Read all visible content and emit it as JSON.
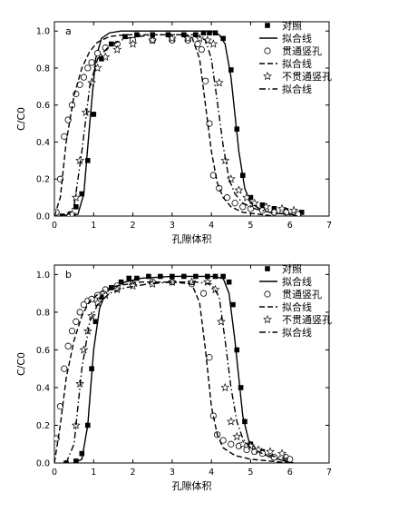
{
  "chart_data": [
    {
      "panel": "a",
      "type": "scatter",
      "xlabel": "孔隙体积",
      "ylabel": "C/C0",
      "xlim": [
        0,
        7
      ],
      "ylim": [
        0,
        1.05
      ],
      "xticks": [
        0,
        1,
        2,
        3,
        4,
        5,
        6,
        7
      ],
      "yticks": [
        0.0,
        0.2,
        0.4,
        0.6,
        0.8,
        1.0
      ],
      "legend": [
        "对照",
        "拟合线",
        "贯通竖孔",
        "拟合线",
        "不贯通竖孔",
        "拟合线"
      ],
      "series": [
        {
          "name": "对照",
          "kind": "points",
          "marker": "square",
          "x": [
            0.2,
            0.4,
            0.55,
            0.7,
            0.85,
            1.0,
            1.2,
            1.45,
            1.8,
            2.1,
            2.5,
            2.9,
            3.3,
            3.6,
            3.8,
            3.95,
            4.1,
            4.3,
            4.5,
            4.65,
            4.8,
            5.0,
            5.3,
            5.6,
            5.9,
            6.3
          ],
          "y": [
            0.0,
            0.01,
            0.05,
            0.12,
            0.3,
            0.55,
            0.85,
            0.93,
            0.97,
            0.98,
            0.98,
            0.98,
            0.98,
            0.98,
            0.99,
            0.99,
            0.99,
            0.96,
            0.79,
            0.47,
            0.22,
            0.1,
            0.06,
            0.04,
            0.03,
            0.02
          ]
        },
        {
          "name": "拟合线",
          "kind": "line",
          "dash": "solid",
          "x": [
            0.4,
            0.6,
            0.75,
            0.9,
            1.05,
            1.2,
            1.4,
            1.7,
            2.0,
            3.0,
            4.0,
            4.2,
            4.35,
            4.5,
            4.6,
            4.7,
            4.85,
            5.0,
            5.3,
            5.6,
            6.0,
            6.3
          ],
          "y": [
            0.0,
            0.01,
            0.12,
            0.5,
            0.85,
            0.96,
            0.99,
            1.0,
            1.0,
            1.0,
            1.0,
            0.98,
            0.93,
            0.75,
            0.55,
            0.35,
            0.15,
            0.07,
            0.03,
            0.015,
            0.01,
            0.0
          ]
        },
        {
          "name": "贯通竖孔",
          "kind": "points",
          "marker": "circle",
          "x": [
            0.05,
            0.15,
            0.25,
            0.35,
            0.45,
            0.55,
            0.65,
            0.75,
            0.85,
            0.95,
            1.1,
            1.3,
            1.6,
            2.0,
            2.5,
            3.0,
            3.4,
            3.65,
            3.75,
            3.85,
            3.95,
            4.05,
            4.2,
            4.4,
            4.6,
            4.8,
            5.0,
            5.3,
            5.6,
            5.9,
            6.2
          ],
          "y": [
            0.02,
            0.2,
            0.43,
            0.52,
            0.6,
            0.66,
            0.71,
            0.75,
            0.8,
            0.83,
            0.88,
            0.91,
            0.93,
            0.95,
            0.95,
            0.95,
            0.95,
            0.93,
            0.9,
            0.73,
            0.5,
            0.22,
            0.15,
            0.1,
            0.07,
            0.05,
            0.04,
            0.03,
            0.02,
            0.02,
            0.01
          ]
        },
        {
          "name": "拟合线",
          "kind": "line",
          "dash": "dash",
          "x": [
            0.0,
            0.15,
            0.3,
            0.5,
            0.7,
            0.9,
            1.1,
            1.4,
            1.8,
            2.5,
            3.2,
            3.5,
            3.7,
            3.85,
            4.0,
            4.15,
            4.3,
            4.5,
            4.8,
            5.2,
            5.6
          ],
          "y": [
            0.0,
            0.1,
            0.4,
            0.65,
            0.8,
            0.89,
            0.94,
            0.97,
            0.98,
            0.98,
            0.98,
            0.97,
            0.85,
            0.6,
            0.35,
            0.18,
            0.1,
            0.05,
            0.02,
            0.01,
            0.0
          ]
        },
        {
          "name": "不贯通竖孔",
          "kind": "points",
          "marker": "star",
          "x": [
            0.35,
            0.45,
            0.55,
            0.65,
            0.8,
            0.95,
            1.1,
            1.3,
            1.6,
            2.0,
            2.5,
            3.0,
            3.4,
            3.7,
            3.9,
            4.05,
            4.2,
            4.35,
            4.5,
            4.7,
            4.9,
            5.1,
            5.4,
            5.8,
            6.1
          ],
          "y": [
            0.0,
            0.01,
            0.1,
            0.3,
            0.56,
            0.72,
            0.8,
            0.86,
            0.9,
            0.93,
            0.95,
            0.96,
            0.96,
            0.96,
            0.95,
            0.93,
            0.72,
            0.3,
            0.2,
            0.14,
            0.1,
            0.07,
            0.05,
            0.04,
            0.03
          ]
        },
        {
          "name": "拟合线",
          "kind": "line",
          "dash": "dashdot",
          "x": [
            0.3,
            0.5,
            0.7,
            0.9,
            1.1,
            1.4,
            1.8,
            2.5,
            3.2,
            3.6,
            3.85,
            4.0,
            4.15,
            4.3,
            4.45,
            4.6,
            4.8,
            5.1,
            5.5,
            6.0,
            6.2
          ],
          "y": [
            0.0,
            0.05,
            0.35,
            0.7,
            0.85,
            0.92,
            0.96,
            0.98,
            0.98,
            0.98,
            0.95,
            0.85,
            0.62,
            0.38,
            0.2,
            0.12,
            0.07,
            0.04,
            0.02,
            0.01,
            0.0
          ]
        }
      ]
    },
    {
      "panel": "b",
      "type": "scatter",
      "xlabel": "孔隙体积",
      "ylabel": "C/C0",
      "xlim": [
        0,
        7
      ],
      "ylim": [
        0,
        1.05
      ],
      "xticks": [
        0,
        1,
        2,
        3,
        4,
        5,
        6,
        7
      ],
      "yticks": [
        0.0,
        0.2,
        0.4,
        0.6,
        0.8,
        1.0
      ],
      "legend": [
        "对照",
        "拟合线",
        "贯通竖孔",
        "拟合线",
        "不贯通竖孔",
        "拟合线"
      ],
      "series": [
        {
          "name": "对照",
          "kind": "points",
          "marker": "square",
          "x": [
            0.3,
            0.55,
            0.7,
            0.85,
            0.95,
            1.05,
            1.2,
            1.45,
            1.7,
            1.9,
            2.1,
            2.4,
            2.7,
            3.0,
            3.3,
            3.6,
            3.9,
            4.1,
            4.3,
            4.45,
            4.55,
            4.65,
            4.75,
            4.85,
            5.0,
            5.3,
            5.6,
            5.9
          ],
          "y": [
            0.0,
            0.01,
            0.05,
            0.2,
            0.5,
            0.75,
            0.88,
            0.93,
            0.96,
            0.98,
            0.98,
            0.99,
            0.99,
            0.99,
            0.99,
            0.99,
            0.99,
            0.99,
            0.99,
            0.96,
            0.84,
            0.6,
            0.4,
            0.22,
            0.1,
            0.06,
            0.03,
            0.02
          ]
        },
        {
          "name": "拟合线",
          "kind": "line",
          "dash": "solid",
          "x": [
            0.5,
            0.7,
            0.85,
            1.0,
            1.15,
            1.3,
            1.5,
            1.8,
            2.2,
            3.0,
            4.0,
            4.3,
            4.45,
            4.6,
            4.7,
            4.8,
            4.95,
            5.2,
            5.5,
            5.9,
            6.1
          ],
          "y": [
            0.0,
            0.02,
            0.2,
            0.6,
            0.82,
            0.9,
            0.94,
            0.96,
            0.98,
            0.99,
            0.99,
            0.98,
            0.9,
            0.65,
            0.45,
            0.25,
            0.12,
            0.06,
            0.03,
            0.01,
            0.0
          ]
        },
        {
          "name": "贯通竖孔",
          "kind": "points",
          "marker": "circle",
          "x": [
            0.05,
            0.15,
            0.25,
            0.35,
            0.45,
            0.55,
            0.65,
            0.75,
            0.85,
            0.95,
            1.1,
            1.3,
            1.6,
            2.0,
            2.5,
            3.0,
            3.5,
            3.8,
            3.95,
            4.05,
            4.15,
            4.3,
            4.5,
            4.7,
            4.9,
            5.1,
            5.3,
            5.6,
            5.9,
            6.0
          ],
          "y": [
            0.13,
            0.3,
            0.5,
            0.62,
            0.7,
            0.75,
            0.8,
            0.84,
            0.86,
            0.87,
            0.89,
            0.92,
            0.94,
            0.95,
            0.96,
            0.96,
            0.95,
            0.9,
            0.56,
            0.25,
            0.15,
            0.12,
            0.1,
            0.09,
            0.07,
            0.06,
            0.05,
            0.03,
            0.03,
            0.02
          ]
        },
        {
          "name": "拟合线",
          "kind": "line",
          "dash": "dash",
          "x": [
            0.0,
            0.15,
            0.3,
            0.5,
            0.7,
            0.9,
            1.2,
            1.6,
            2.2,
            3.0,
            3.5,
            3.7,
            3.85,
            4.0,
            4.15,
            4.3,
            4.6,
            5.0,
            5.5,
            6.0
          ],
          "y": [
            0.0,
            0.2,
            0.45,
            0.65,
            0.78,
            0.86,
            0.91,
            0.94,
            0.96,
            0.96,
            0.95,
            0.85,
            0.6,
            0.3,
            0.15,
            0.08,
            0.04,
            0.02,
            0.01,
            0.0
          ]
        },
        {
          "name": "不贯通竖孔",
          "kind": "points",
          "marker": "star",
          "x": [
            0.55,
            0.65,
            0.75,
            0.85,
            0.95,
            1.1,
            1.3,
            1.6,
            2.0,
            2.5,
            3.0,
            3.5,
            3.9,
            4.1,
            4.25,
            4.35,
            4.5,
            4.65,
            4.8,
            5.0,
            5.2,
            5.5,
            5.8
          ],
          "y": [
            0.2,
            0.42,
            0.6,
            0.7,
            0.78,
            0.85,
            0.89,
            0.92,
            0.94,
            0.95,
            0.96,
            0.96,
            0.96,
            0.92,
            0.75,
            0.4,
            0.22,
            0.14,
            0.1,
            0.09,
            0.07,
            0.06,
            0.05
          ]
        },
        {
          "name": "拟合线",
          "kind": "line",
          "dash": "dashdot",
          "x": [
            0.3,
            0.5,
            0.7,
            0.9,
            1.1,
            1.4,
            1.8,
            2.4,
            3.0,
            3.6,
            4.0,
            4.2,
            4.35,
            4.5,
            4.65,
            4.8,
            5.0,
            5.3,
            5.7,
            6.0
          ],
          "y": [
            0.0,
            0.1,
            0.5,
            0.75,
            0.84,
            0.9,
            0.93,
            0.95,
            0.96,
            0.96,
            0.95,
            0.88,
            0.65,
            0.4,
            0.22,
            0.13,
            0.08,
            0.05,
            0.03,
            0.02
          ]
        }
      ]
    }
  ]
}
